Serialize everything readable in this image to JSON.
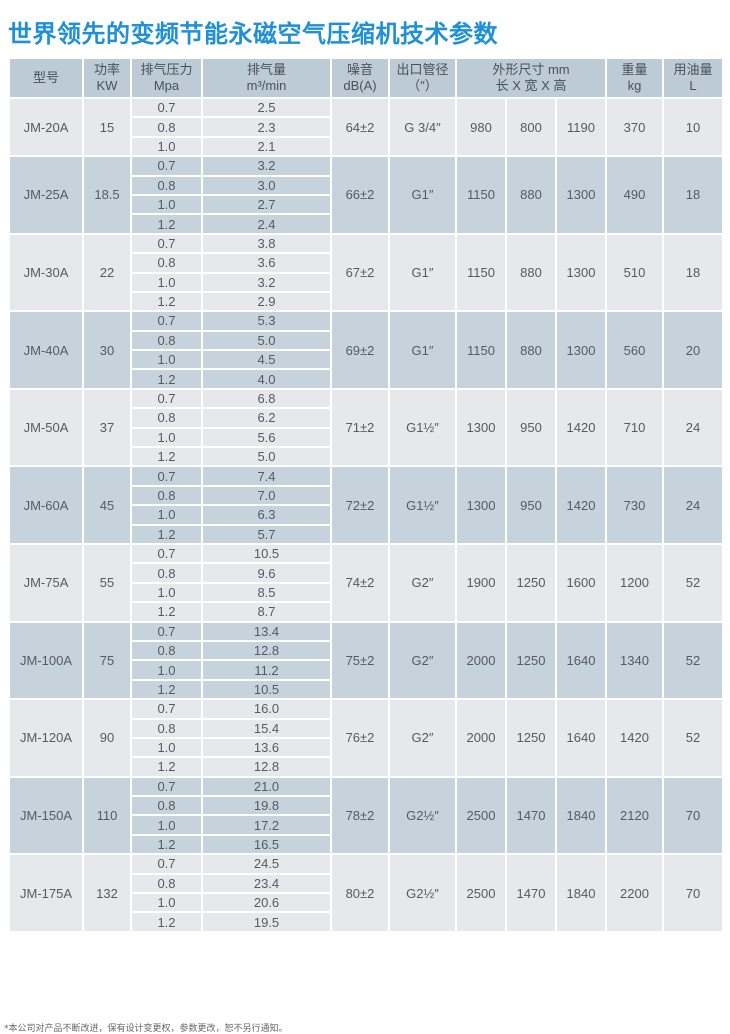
{
  "title": "世界领先的变频节能永磁空气压缩机技术参数",
  "headers": {
    "model": "型号",
    "power": [
      "功率",
      "KW"
    ],
    "pressure": [
      "排气压力",
      "Mpa"
    ],
    "flow": [
      "排气量",
      "m³/min"
    ],
    "noise": [
      "噪音",
      "dB(A)"
    ],
    "outlet": [
      "出口管径",
      "（″）"
    ],
    "dimensions": [
      "外形尺寸 mm",
      "长 X 宽 X 高"
    ],
    "weight": [
      "重量",
      "kg"
    ],
    "oil": [
      "用油量",
      "L"
    ]
  },
  "rows": [
    {
      "model": "JM-20A",
      "power": "15",
      "pressures": [
        "0.7",
        "0.8",
        "1.0"
      ],
      "flows": [
        "2.5",
        "2.3",
        "2.1"
      ],
      "noise": "64±2",
      "outlet": "G 3/4″",
      "length": "980",
      "width": "800",
      "height": "1190",
      "weight": "370",
      "oil": "10"
    },
    {
      "model": "JM-25A",
      "power": "18.5",
      "pressures": [
        "0.7",
        "0.8",
        "1.0",
        "1.2"
      ],
      "flows": [
        "3.2",
        "3.0",
        "2.7",
        "2.4"
      ],
      "noise": "66±2",
      "outlet": "G1″",
      "length": "1150",
      "width": "880",
      "height": "1300",
      "weight": "490",
      "oil": "18"
    },
    {
      "model": "JM-30A",
      "power": "22",
      "pressures": [
        "0.7",
        "0.8",
        "1.0",
        "1.2"
      ],
      "flows": [
        "3.8",
        "3.6",
        "3.2",
        "2.9"
      ],
      "noise": "67±2",
      "outlet": "G1″",
      "length": "1150",
      "width": "880",
      "height": "1300",
      "weight": "510",
      "oil": "18"
    },
    {
      "model": "JM-40A",
      "power": "30",
      "pressures": [
        "0.7",
        "0.8",
        "1.0",
        "1.2"
      ],
      "flows": [
        "5.3",
        "5.0",
        "4.5",
        "4.0"
      ],
      "noise": "69±2",
      "outlet": "G1″",
      "length": "1150",
      "width": "880",
      "height": "1300",
      "weight": "560",
      "oil": "20"
    },
    {
      "model": "JM-50A",
      "power": "37",
      "pressures": [
        "0.7",
        "0.8",
        "1.0",
        "1.2"
      ],
      "flows": [
        "6.8",
        "6.2",
        "5.6",
        "5.0"
      ],
      "noise": "71±2",
      "outlet": "G1½″",
      "length": "1300",
      "width": "950",
      "height": "1420",
      "weight": "710",
      "oil": "24"
    },
    {
      "model": "JM-60A",
      "power": "45",
      "pressures": [
        "0.7",
        "0.8",
        "1.0",
        "1.2"
      ],
      "flows": [
        "7.4",
        "7.0",
        "6.3",
        "5.7"
      ],
      "noise": "72±2",
      "outlet": "G1½″",
      "length": "1300",
      "width": "950",
      "height": "1420",
      "weight": "730",
      "oil": "24"
    },
    {
      "model": "JM-75A",
      "power": "55",
      "pressures": [
        "0.7",
        "0.8",
        "1.0",
        "1.2"
      ],
      "flows": [
        "10.5",
        "9.6",
        "8.5",
        "8.7"
      ],
      "noise": "74±2",
      "outlet": "G2″",
      "length": "1900",
      "width": "1250",
      "height": "1600",
      "weight": "1200",
      "oil": "52"
    },
    {
      "model": "JM-100A",
      "power": "75",
      "pressures": [
        "0.7",
        "0.8",
        "1.0",
        "1.2"
      ],
      "flows": [
        "13.4",
        "12.8",
        "11.2",
        "10.5"
      ],
      "noise": "75±2",
      "outlet": "G2″",
      "length": "2000",
      "width": "1250",
      "height": "1640",
      "weight": "1340",
      "oil": "52"
    },
    {
      "model": "JM-120A",
      "power": "90",
      "pressures": [
        "0.7",
        "0.8",
        "1.0",
        "1.2"
      ],
      "flows": [
        "16.0",
        "15.4",
        "13.6",
        "12.8"
      ],
      "noise": "76±2",
      "outlet": "G2″",
      "length": "2000",
      "width": "1250",
      "height": "1640",
      "weight": "1420",
      "oil": "52"
    },
    {
      "model": "JM-150A",
      "power": "110",
      "pressures": [
        "0.7",
        "0.8",
        "1.0",
        "1.2"
      ],
      "flows": [
        "21.0",
        "19.8",
        "17.2",
        "16.5"
      ],
      "noise": "78±2",
      "outlet": "G2½″",
      "length": "2500",
      "width": "1470",
      "height": "1840",
      "weight": "2120",
      "oil": "70"
    },
    {
      "model": "JM-175A",
      "power": "132",
      "pressures": [
        "0.7",
        "0.8",
        "1.0",
        "1.2"
      ],
      "flows": [
        "24.5",
        "23.4",
        "20.6",
        "19.5"
      ],
      "noise": "80±2",
      "outlet": "G2½″",
      "length": "2500",
      "width": "1470",
      "height": "1840",
      "weight": "2200",
      "oil": "70"
    }
  ],
  "colors": {
    "title": "#1e90d8",
    "header_bg": "#bccbd6",
    "row_light": "#e7e8ec",
    "row_blue": "#c7d3dc"
  },
  "footnote": "*本公司对产品不断改进，保有设计变更权，参数更改，恕不另行通知。"
}
